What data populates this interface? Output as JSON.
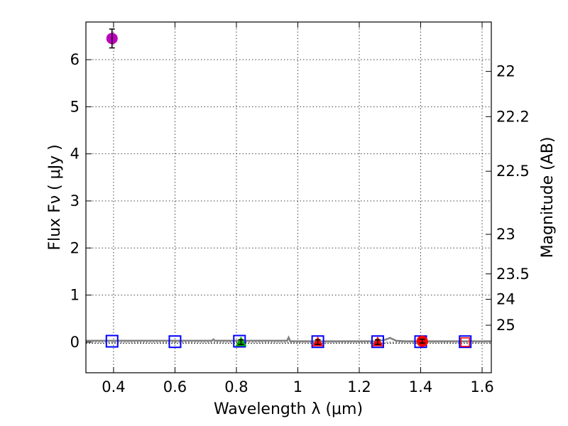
{
  "chart_data": {
    "type": "scatter",
    "xlabel": "Wavelength  λ (μm)",
    "ylabel": "Flux  Fν  ( μJy )",
    "y2label": "Magnitude (AB)",
    "xlim": [
      0.31,
      1.63
    ],
    "ylim": [
      -0.65,
      6.8
    ],
    "grid": true,
    "x_ticks": [
      0.4,
      0.6,
      0.8,
      1.0,
      1.2,
      1.4,
      1.6
    ],
    "x_tick_labels": [
      "0.4",
      "0.6",
      "0.8",
      "1",
      "1.2",
      "1.4",
      "1.6"
    ],
    "y_ticks": [
      0,
      1,
      2,
      3,
      4,
      5,
      6
    ],
    "y_tick_labels": [
      "0",
      "1",
      "2",
      "3",
      "4",
      "5",
      "6"
    ],
    "y2_ticks": [
      {
        "label": "22",
        "flux": 5.75
      },
      {
        "label": "22.2",
        "flux": 4.79
      },
      {
        "label": "22.5",
        "flux": 3.63
      },
      {
        "label": "23",
        "flux": 2.29
      },
      {
        "label": "23.5",
        "flux": 1.45
      },
      {
        "label": "24",
        "flux": 0.91
      },
      {
        "label": "25",
        "flux": 0.36
      }
    ],
    "model_line": {
      "color": "#808080",
      "x": [
        0.31,
        0.5,
        0.72,
        0.725,
        0.73,
        0.9,
        0.965,
        0.97,
        0.975,
        1.1,
        1.25,
        1.28,
        1.3,
        1.32,
        1.35,
        1.5,
        1.63
      ],
      "y": [
        0.03,
        0.03,
        0.03,
        0.06,
        0.03,
        0.03,
        0.03,
        0.1,
        0.02,
        0.02,
        0.02,
        0.04,
        0.09,
        0.03,
        0.02,
        0.02,
        0.02
      ]
    },
    "zero_line_y": -0.02,
    "model_boxes": {
      "x": [
        0.395,
        0.6,
        0.81,
        1.065,
        1.26,
        1.4,
        1.545
      ],
      "y": [
        0.02,
        0.01,
        0.02,
        0.01,
        0.01,
        0.01,
        0.01
      ],
      "edgecolor": "#0000ff"
    },
    "series": [
      {
        "name": "photometry-violet",
        "marker": "circle",
        "color": "#bf00bf",
        "x": [
          0.395
        ],
        "y": [
          6.45
        ],
        "yerr": [
          0.2
        ]
      },
      {
        "name": "photometry-green",
        "marker": "triangle",
        "color": "#00b000",
        "x": [
          0.815
        ],
        "y": [
          0.0
        ],
        "yerr": [
          0.05
        ]
      },
      {
        "name": "photometry-red-triangles",
        "marker": "triangle",
        "color": "#ff0000",
        "x": [
          1.065,
          1.26
        ],
        "y": [
          0.0,
          0.0
        ],
        "yerr": [
          0.05,
          0.05
        ]
      },
      {
        "name": "photometry-red-circle",
        "marker": "circle",
        "color": "#ff0000",
        "x": [
          1.405
        ],
        "y": [
          0.02
        ],
        "yerr": [
          0.04
        ]
      },
      {
        "name": "photometry-open-red",
        "marker": "square-open",
        "color": "#ff0000",
        "x": [
          1.545
        ],
        "y": [
          0.0
        ],
        "yerr": [
          0
        ]
      }
    ]
  }
}
